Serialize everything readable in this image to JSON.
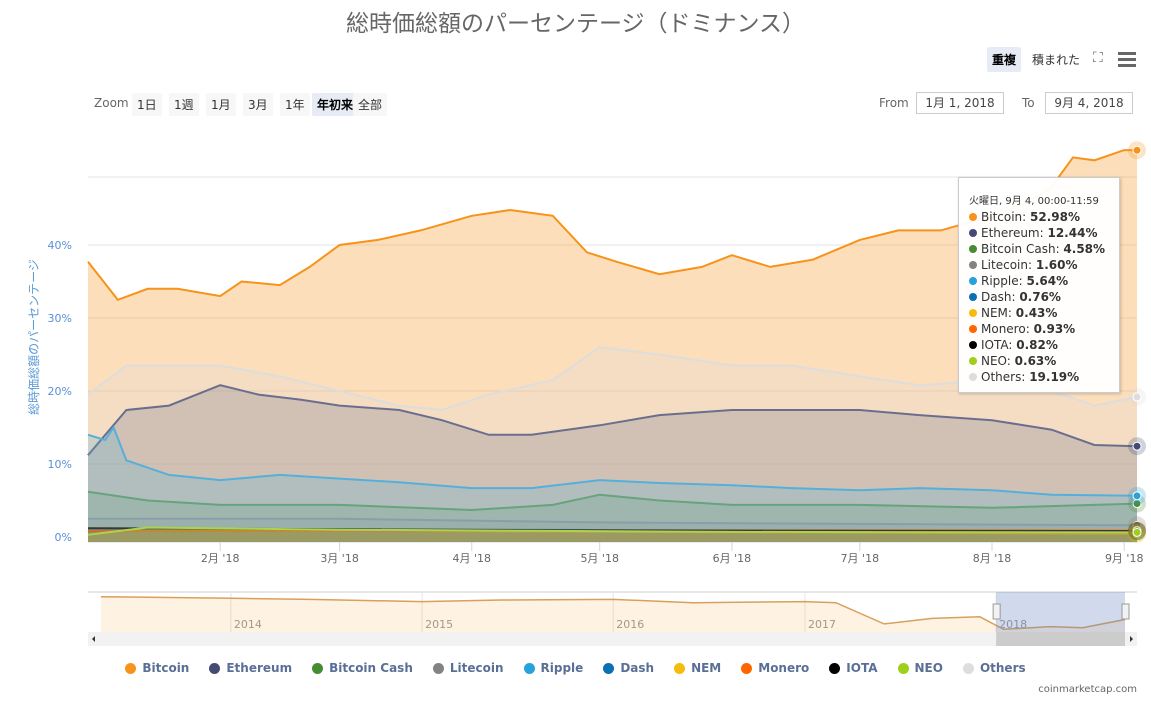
{
  "title": "総時価総額のパーセンテージ（ドミナンス）",
  "toolbar": {
    "overlap": "重複",
    "stacked": "積まれた",
    "fullscreen_icon": "fullscreen-icon",
    "menu_icon": "hamburger-menu-icon"
  },
  "zoom": {
    "label": "Zoom",
    "buttons": [
      "1日",
      "1週",
      "1月",
      "3月",
      "1年",
      "年初来",
      "全部"
    ],
    "selected": "年初来"
  },
  "range": {
    "from_label": "From",
    "from": "1月 1, 2018",
    "to_label": "To",
    "to": "9月 4, 2018"
  },
  "tooltip": {
    "header": "火曜日, 9月 4, 00:00-11:59",
    "rows": [
      {
        "name": "Bitcoin",
        "value": "52.98%"
      },
      {
        "name": "Ethereum",
        "value": "12.44%"
      },
      {
        "name": "Bitcoin Cash",
        "value": "4.58%"
      },
      {
        "name": "Litecoin",
        "value": "1.60%"
      },
      {
        "name": "Ripple",
        "value": "5.64%"
      },
      {
        "name": "Dash",
        "value": "0.76%"
      },
      {
        "name": "NEM",
        "value": "0.43%"
      },
      {
        "name": "Monero",
        "value": "0.93%"
      },
      {
        "name": "IOTA",
        "value": "0.82%"
      },
      {
        "name": "NEO",
        "value": "0.63%"
      },
      {
        "name": "Others",
        "value": "19.19%"
      }
    ]
  },
  "credits": "coinmarketcap.com",
  "chart_data": {
    "type": "area",
    "title": "総時価総額のパーセンテージ（ドミナンス）",
    "ylabel": "総時価総額のパーセンテージ",
    "ylim": [
      0,
      55
    ],
    "yticks": [
      "0%",
      "10%",
      "20%",
      "30%",
      "40%"
    ],
    "xlim": [
      "2018-01-01",
      "2018-09-04"
    ],
    "xticks": [
      {
        "date": "2018-02-01",
        "label": "2月 '18"
      },
      {
        "date": "2018-03-01",
        "label": "3月 '18"
      },
      {
        "date": "2018-04-01",
        "label": "4月 '18"
      },
      {
        "date": "2018-05-01",
        "label": "5月 '18"
      },
      {
        "date": "2018-06-01",
        "label": "6月 '18"
      },
      {
        "date": "2018-07-01",
        "label": "7月 '18"
      },
      {
        "date": "2018-08-01",
        "label": "8月 '18"
      },
      {
        "date": "2018-09-01",
        "label": "9月 '18"
      }
    ],
    "grid": true,
    "legend": "bottom",
    "mode": "overlap",
    "series": [
      {
        "name": "Bitcoin",
        "color": "#f7931a",
        "points": [
          [
            "2018-01-01",
            37.7
          ],
          [
            "2018-01-08",
            32.5
          ],
          [
            "2018-01-15",
            34
          ],
          [
            "2018-01-22",
            34
          ],
          [
            "2018-02-01",
            33
          ],
          [
            "2018-02-06",
            35
          ],
          [
            "2018-02-15",
            34.5
          ],
          [
            "2018-02-22",
            37
          ],
          [
            "2018-03-01",
            40
          ],
          [
            "2018-03-10",
            40.7
          ],
          [
            "2018-03-20",
            42
          ],
          [
            "2018-04-01",
            44
          ],
          [
            "2018-04-10",
            44.8
          ],
          [
            "2018-04-20",
            44
          ],
          [
            "2018-04-28",
            39
          ],
          [
            "2018-05-05",
            37.7
          ],
          [
            "2018-05-15",
            36
          ],
          [
            "2018-05-25",
            37
          ],
          [
            "2018-06-01",
            38.6
          ],
          [
            "2018-06-10",
            37
          ],
          [
            "2018-06-20",
            38
          ],
          [
            "2018-07-01",
            40.7
          ],
          [
            "2018-07-10",
            42
          ],
          [
            "2018-07-20",
            42
          ],
          [
            "2018-08-01",
            44
          ],
          [
            "2018-08-10",
            46
          ],
          [
            "2018-08-15",
            48
          ],
          [
            "2018-08-20",
            52
          ],
          [
            "2018-08-25",
            51.6
          ],
          [
            "2018-09-01",
            53
          ],
          [
            "2018-09-04",
            52.98
          ]
        ]
      },
      {
        "name": "Ethereum",
        "color": "#454a75",
        "points": [
          [
            "2018-01-01",
            11.2
          ],
          [
            "2018-01-10",
            17.4
          ],
          [
            "2018-01-20",
            18
          ],
          [
            "2018-02-01",
            20.8
          ],
          [
            "2018-02-10",
            19.5
          ],
          [
            "2018-02-20",
            18.8
          ],
          [
            "2018-03-01",
            18
          ],
          [
            "2018-03-15",
            17.4
          ],
          [
            "2018-03-25",
            16
          ],
          [
            "2018-04-05",
            14
          ],
          [
            "2018-04-15",
            14
          ],
          [
            "2018-05-01",
            15.3
          ],
          [
            "2018-05-15",
            16.7
          ],
          [
            "2018-06-01",
            17.4
          ],
          [
            "2018-06-15",
            17.4
          ],
          [
            "2018-07-01",
            17.4
          ],
          [
            "2018-07-15",
            16.7
          ],
          [
            "2018-08-01",
            16
          ],
          [
            "2018-08-15",
            14.7
          ],
          [
            "2018-08-25",
            12.6
          ],
          [
            "2018-09-04",
            12.44
          ]
        ]
      },
      {
        "name": "Bitcoin Cash",
        "color": "#478c33",
        "points": [
          [
            "2018-01-01",
            6.2
          ],
          [
            "2018-01-15",
            5
          ],
          [
            "2018-02-01",
            4.4
          ],
          [
            "2018-03-01",
            4.4
          ],
          [
            "2018-04-01",
            3.7
          ],
          [
            "2018-04-20",
            4.4
          ],
          [
            "2018-05-01",
            5.8
          ],
          [
            "2018-05-15",
            5
          ],
          [
            "2018-06-01",
            4.4
          ],
          [
            "2018-07-01",
            4.4
          ],
          [
            "2018-08-01",
            4
          ],
          [
            "2018-09-04",
            4.58
          ]
        ]
      },
      {
        "name": "Litecoin",
        "color": "#838383",
        "points": [
          [
            "2018-01-01",
            2.5
          ],
          [
            "2018-03-01",
            2.5
          ],
          [
            "2018-05-01",
            2
          ],
          [
            "2018-07-01",
            1.8
          ],
          [
            "2018-09-04",
            1.6
          ]
        ]
      },
      {
        "name": "Ripple",
        "color": "#27a2db",
        "points": [
          [
            "2018-01-01",
            14
          ],
          [
            "2018-01-05",
            13.3
          ],
          [
            "2018-01-07",
            15
          ],
          [
            "2018-01-10",
            10.5
          ],
          [
            "2018-01-20",
            8.5
          ],
          [
            "2018-02-01",
            7.8
          ],
          [
            "2018-02-15",
            8.5
          ],
          [
            "2018-03-01",
            8
          ],
          [
            "2018-03-15",
            7.5
          ],
          [
            "2018-04-01",
            6.7
          ],
          [
            "2018-04-15",
            6.7
          ],
          [
            "2018-05-01",
            7.8
          ],
          [
            "2018-05-15",
            7.4
          ],
          [
            "2018-06-01",
            7.1
          ],
          [
            "2018-06-15",
            6.7
          ],
          [
            "2018-07-01",
            6.4
          ],
          [
            "2018-07-15",
            6.7
          ],
          [
            "2018-08-01",
            6.4
          ],
          [
            "2018-08-15",
            5.8
          ],
          [
            "2018-09-04",
            5.64
          ]
        ]
      },
      {
        "name": "Dash",
        "color": "#0b6fb3",
        "points": [
          [
            "2018-01-01",
            1.2
          ],
          [
            "2018-04-01",
            1
          ],
          [
            "2018-09-04",
            0.76
          ]
        ]
      },
      {
        "name": "NEM",
        "color": "#f5bc0d",
        "points": [
          [
            "2018-01-01",
            1.2
          ],
          [
            "2018-04-01",
            0.8
          ],
          [
            "2018-09-04",
            0.43
          ]
        ]
      },
      {
        "name": "Monero",
        "color": "#ff6600",
        "points": [
          [
            "2018-01-01",
            0.8
          ],
          [
            "2018-05-01",
            0.9
          ],
          [
            "2018-09-04",
            0.93
          ]
        ]
      },
      {
        "name": "IOTA",
        "color": "#000000",
        "points": [
          [
            "2018-01-01",
            1.2
          ],
          [
            "2018-05-01",
            0.9
          ],
          [
            "2018-09-04",
            0.82
          ]
        ]
      },
      {
        "name": "NEO",
        "color": "#9ecf1c",
        "points": [
          [
            "2018-01-01",
            0.3
          ],
          [
            "2018-01-15",
            1.3
          ],
          [
            "2018-03-01",
            1
          ],
          [
            "2018-06-01",
            0.7
          ],
          [
            "2018-09-04",
            0.63
          ]
        ]
      },
      {
        "name": "Others",
        "color": "#dddddd",
        "points": [
          [
            "2018-01-01",
            19.5
          ],
          [
            "2018-01-10",
            23.5
          ],
          [
            "2018-02-01",
            23.5
          ],
          [
            "2018-02-15",
            22
          ],
          [
            "2018-03-01",
            20
          ],
          [
            "2018-03-15",
            18
          ],
          [
            "2018-03-25",
            17.4
          ],
          [
            "2018-04-05",
            19.5
          ],
          [
            "2018-04-20",
            21.5
          ],
          [
            "2018-05-01",
            26
          ],
          [
            "2018-05-15",
            25
          ],
          [
            "2018-06-01",
            23.5
          ],
          [
            "2018-06-15",
            23.5
          ],
          [
            "2018-07-01",
            22
          ],
          [
            "2018-07-15",
            20.8
          ],
          [
            "2018-08-01",
            21.5
          ],
          [
            "2018-08-15",
            20
          ],
          [
            "2018-08-25",
            18
          ],
          [
            "2018-09-04",
            19.19
          ]
        ]
      }
    ],
    "navigator": {
      "series": "Bitcoin",
      "xticks": [
        "2014",
        "2015",
        "2016",
        "2017",
        "2018"
      ],
      "selected_range": [
        "2018-01-01",
        "2018-09-04"
      ],
      "points": [
        [
          "2013-04-28",
          95
        ],
        [
          "2014-01-01",
          92
        ],
        [
          "2014-06-01",
          90
        ],
        [
          "2015-01-01",
          86
        ],
        [
          "2015-06-01",
          89
        ],
        [
          "2016-01-01",
          90
        ],
        [
          "2016-06-01",
          84
        ],
        [
          "2017-01-01",
          86
        ],
        [
          "2017-03-01",
          84
        ],
        [
          "2017-06-01",
          45
        ],
        [
          "2017-09-01",
          55
        ],
        [
          "2017-12-01",
          58
        ],
        [
          "2018-01-15",
          35
        ],
        [
          "2018-04-15",
          40
        ],
        [
          "2018-06-15",
          38
        ],
        [
          "2018-09-04",
          53
        ]
      ]
    }
  }
}
